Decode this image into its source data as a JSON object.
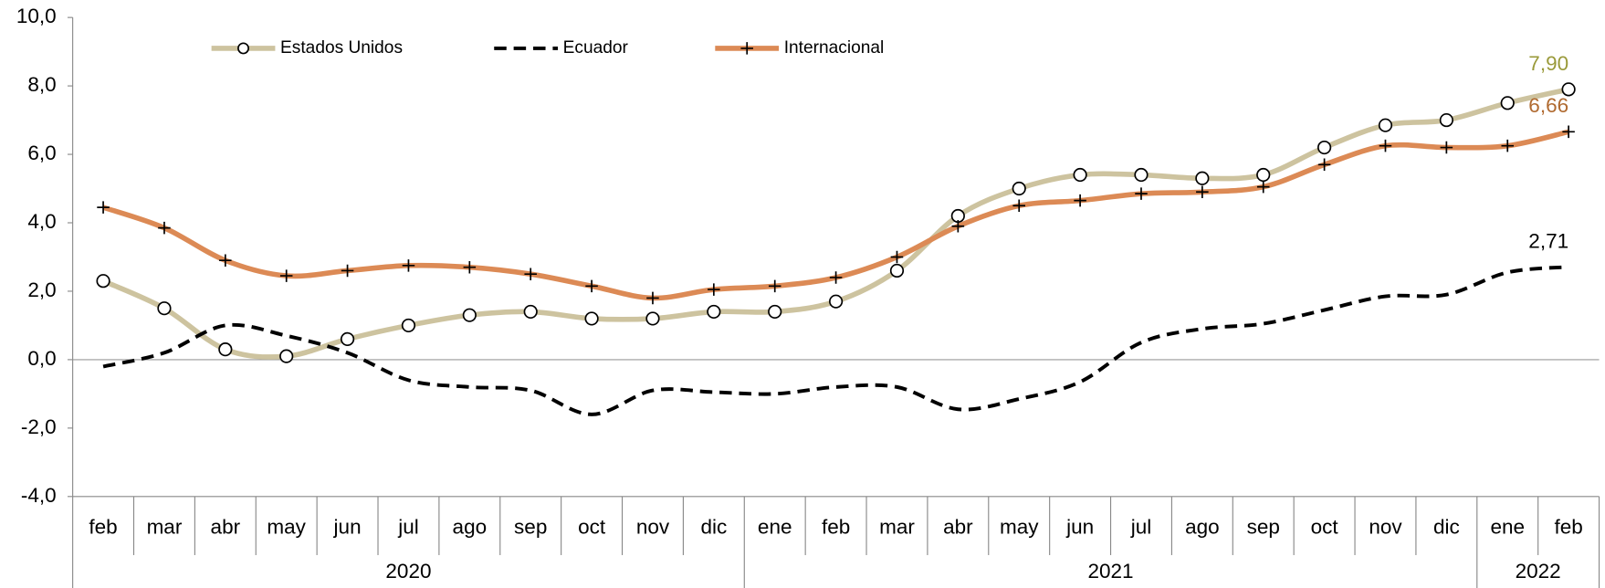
{
  "chart_data": {
    "type": "line",
    "category_groups": [
      {
        "name": "2020",
        "categories": [
          "feb",
          "mar",
          "abr",
          "may",
          "jun",
          "jul",
          "ago",
          "sep",
          "oct",
          "nov",
          "dic"
        ]
      },
      {
        "name": "2021",
        "categories": [
          "ene",
          "feb",
          "mar",
          "abr",
          "may",
          "jun",
          "jul",
          "ago",
          "sep",
          "oct",
          "nov",
          "dic"
        ]
      },
      {
        "name": "2022",
        "categories": [
          "ene",
          "feb"
        ]
      }
    ],
    "series": [
      {
        "name": "Estados Unidos",
        "color": "#cdc39f",
        "marker": "circle",
        "dash": "solid",
        "label_color": "#9a9a3a",
        "values": [
          2.3,
          1.5,
          0.3,
          0.1,
          0.6,
          1.0,
          1.3,
          1.4,
          1.2,
          1.2,
          1.4,
          1.4,
          1.7,
          2.6,
          4.2,
          5.0,
          5.4,
          5.4,
          5.3,
          5.4,
          6.2,
          6.85,
          7.0,
          7.5,
          7.9
        ],
        "value_labels": [
          null,
          null,
          null,
          null,
          null,
          null,
          null,
          null,
          null,
          null,
          null,
          null,
          null,
          null,
          null,
          null,
          null,
          null,
          null,
          null,
          null,
          null,
          null,
          null,
          "7,90"
        ]
      },
      {
        "name": "Ecuador",
        "color": "#000000",
        "marker": "none",
        "dash": "dashed",
        "label_color": "#000000",
        "values": [
          -0.2,
          0.2,
          1.0,
          0.7,
          0.2,
          -0.6,
          -0.8,
          -0.9,
          -1.6,
          -0.9,
          -0.95,
          -1.0,
          -0.8,
          -0.8,
          -1.45,
          -1.15,
          -0.65,
          0.5,
          0.9,
          1.05,
          1.45,
          1.85,
          1.9,
          2.55,
          2.71
        ],
        "value_labels": [
          null,
          null,
          null,
          null,
          null,
          null,
          null,
          null,
          null,
          null,
          null,
          null,
          null,
          null,
          null,
          null,
          null,
          null,
          null,
          null,
          null,
          null,
          null,
          null,
          "2,71"
        ]
      },
      {
        "name": "Internacional",
        "color": "#dc8a55",
        "marker": "plus",
        "dash": "solid",
        "label_color": "#b06a30",
        "values": [
          4.45,
          3.85,
          2.9,
          2.45,
          2.6,
          2.75,
          2.7,
          2.5,
          2.15,
          1.8,
          2.05,
          2.15,
          2.4,
          3.0,
          3.9,
          4.5,
          4.65,
          4.85,
          4.9,
          5.05,
          5.7,
          6.25,
          6.2,
          6.25,
          6.66
        ],
        "value_labels": [
          null,
          null,
          null,
          null,
          null,
          null,
          null,
          null,
          null,
          null,
          null,
          null,
          null,
          null,
          null,
          null,
          null,
          null,
          null,
          null,
          null,
          null,
          null,
          null,
          "6,66"
        ]
      }
    ],
    "ylim": [
      -4,
      10
    ],
    "yticks": [
      {
        "value": -4,
        "label": "-4,0"
      },
      {
        "value": -2,
        "label": "-2,0"
      },
      {
        "value": 0,
        "label": "0,0"
      },
      {
        "value": 2,
        "label": "2,0"
      },
      {
        "value": 4,
        "label": "4,0"
      },
      {
        "value": 6,
        "label": "6,0"
      },
      {
        "value": 8,
        "label": "8,0"
      },
      {
        "value": 10,
        "label": "10,0"
      }
    ],
    "smooth": true,
    "legend": "top"
  }
}
